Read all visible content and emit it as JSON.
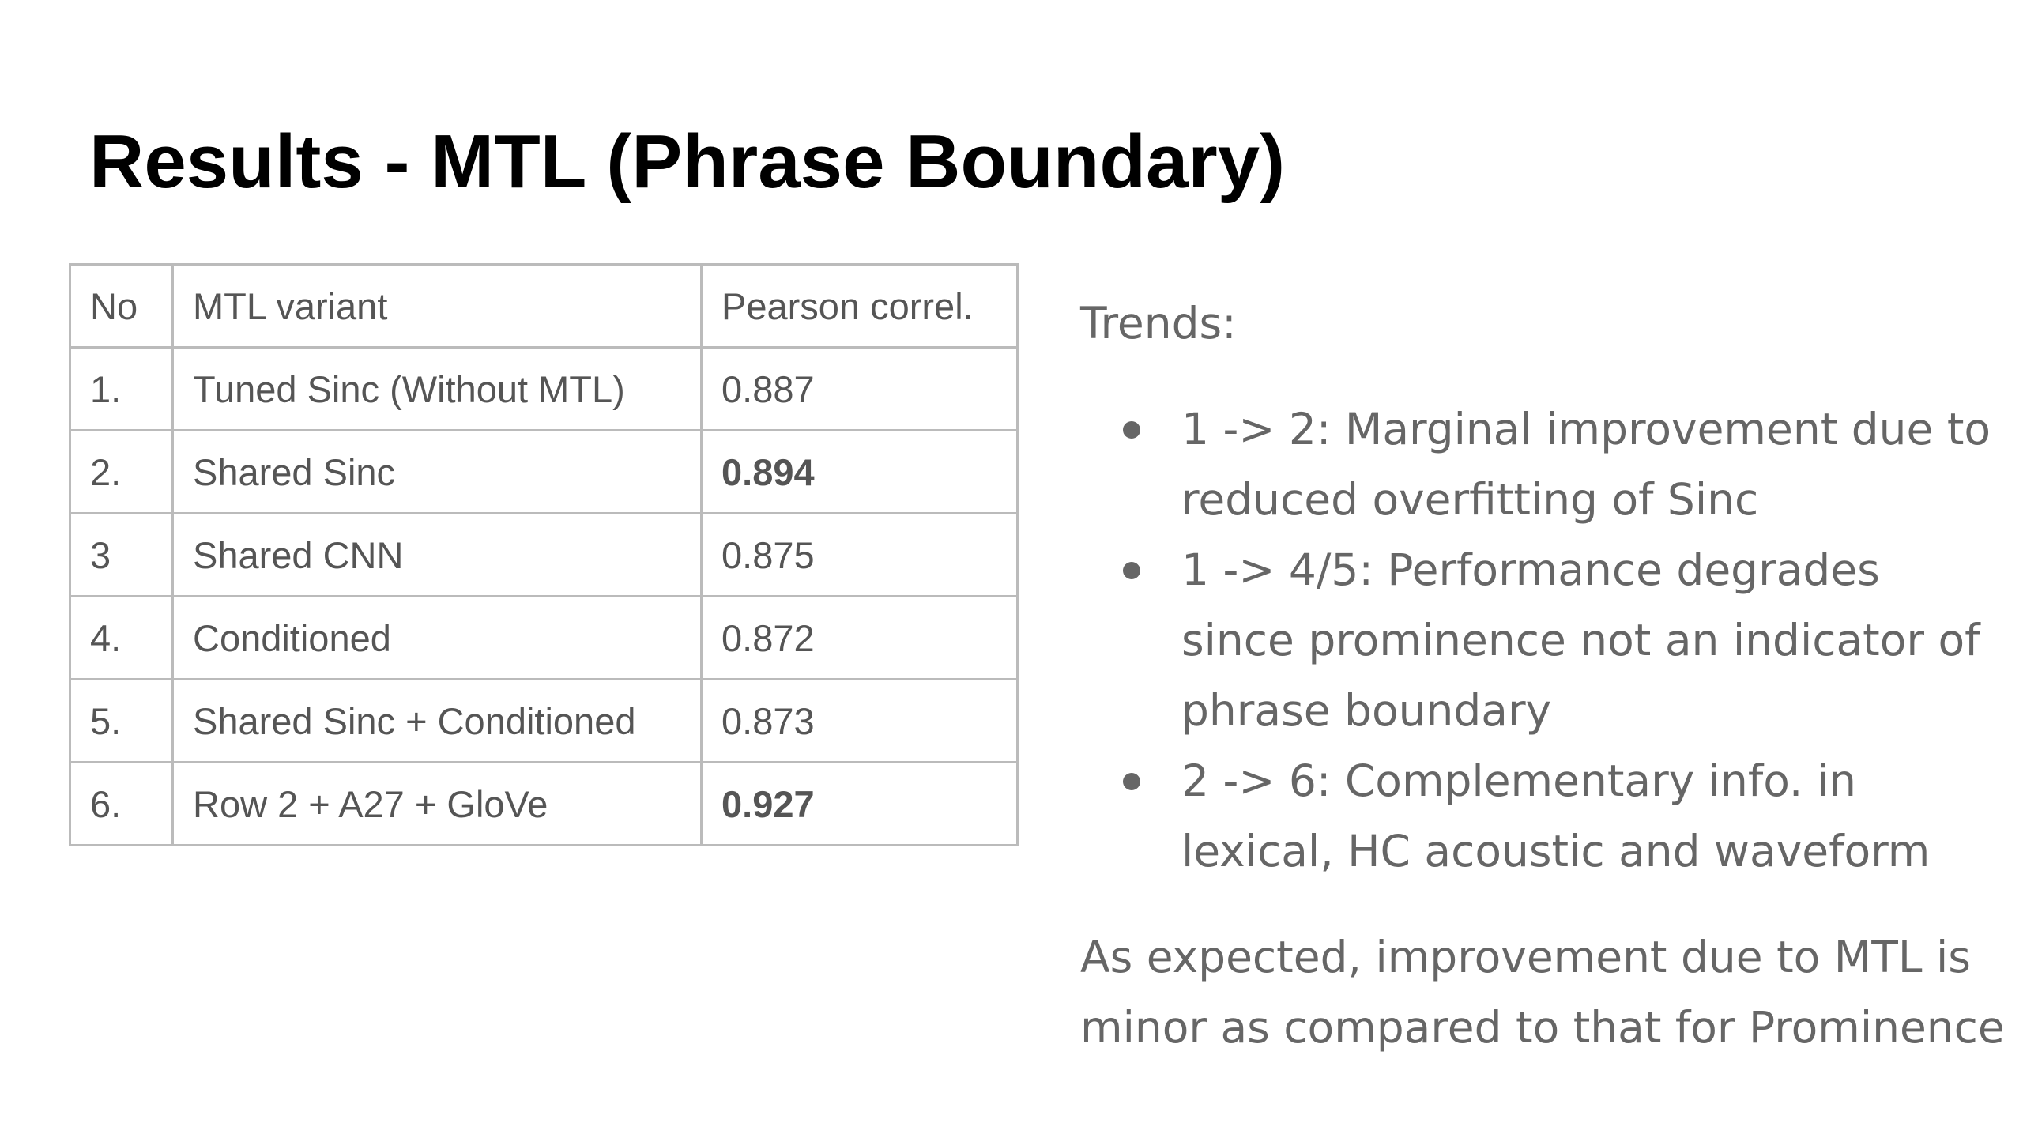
{
  "title": "Results - MTL (Phrase Boundary)",
  "table": {
    "header": [
      "No",
      "MTL variant",
      "Pearson correl."
    ],
    "rows": [
      [
        "1.",
        "Tuned Sinc (Without MTL)",
        "0.887"
      ],
      [
        "2.",
        "Shared Sinc",
        "0.894"
      ],
      [
        "3",
        "Shared CNN",
        "0.875"
      ],
      [
        "4.",
        "Conditioned",
        "0.872"
      ],
      [
        "5.",
        "Shared Sinc + Conditioned",
        "0.873"
      ],
      [
        "6.",
        "Row 2 + A27 + GloVe",
        "0.927"
      ]
    ]
  },
  "trends": {
    "label": "Trends:",
    "bullets": [
      "1 -> 2: Marginal improvement due to reduced overfitting of Sinc",
      "1 -> 4/5: Performance degrades since prominence not an indicator of phrase boundary",
      "2 -> 6: Complementary info. in lexical, HC acoustic and waveform"
    ]
  },
  "conclusion": "As expected, improvement due to MTL is minor as compared to that for Prominence"
}
